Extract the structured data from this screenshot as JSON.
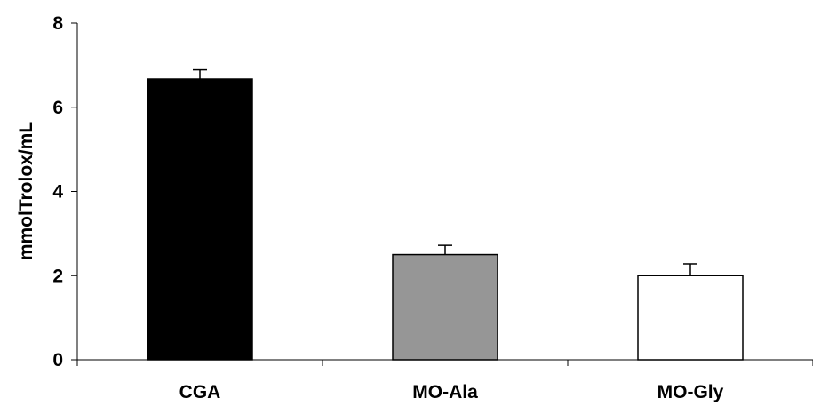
{
  "chart_data": {
    "type": "bar",
    "title": "",
    "xlabel": "",
    "ylabel": "mmolTrolox/mL",
    "ylim": [
      0,
      8
    ],
    "yticks": [
      0,
      2,
      4,
      6,
      8
    ],
    "categories": [
      "CGA",
      "MO-Ala",
      "MO-Gly"
    ],
    "values": [
      6.67,
      2.5,
      2.0
    ],
    "errors": [
      0.22,
      0.22,
      0.28
    ],
    "bar_colors": [
      "#000000",
      "#969696",
      "#ffffff"
    ],
    "grid": false,
    "legend": "none"
  }
}
